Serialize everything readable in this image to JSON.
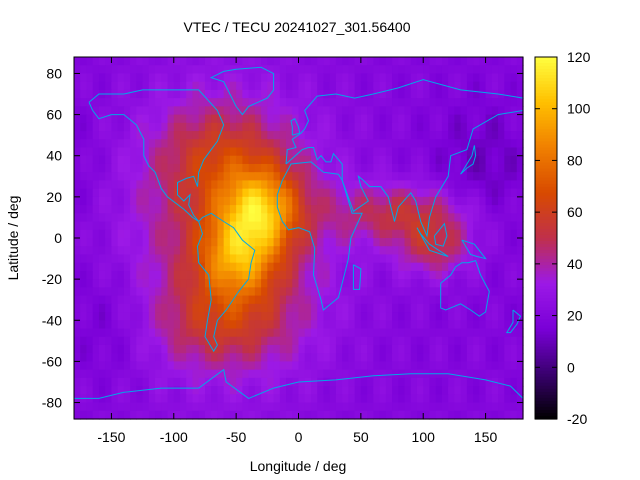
{
  "chart_data": {
    "type": "heatmap",
    "title": "VTEC / TECU 20241027_301.56400",
    "xlabel": "Longitude / deg",
    "ylabel": "Latitude / deg",
    "xlim": [
      -180,
      180
    ],
    "ylim": [
      -88,
      88
    ],
    "x_ticks": [
      -150,
      -100,
      -50,
      0,
      50,
      100,
      150
    ],
    "y_ticks": [
      -80,
      -60,
      -40,
      -20,
      0,
      20,
      40,
      60,
      80
    ],
    "colorbar": {
      "min": -20,
      "max": 120,
      "ticks": [
        -20,
        0,
        20,
        40,
        60,
        80,
        100,
        120
      ],
      "palette": [
        "#000000",
        "#3a0070",
        "#7a00d8",
        "#9c19e6",
        "#c0304a",
        "#d84a00",
        "#f08000",
        "#ffc000",
        "#ffff40"
      ]
    },
    "grid": false,
    "legend": "none",
    "background_vtec": 20,
    "features": [
      {
        "name": "equatorial-anomaly-peak-atlantic",
        "lon": -30,
        "lat": 12,
        "vtec": 112
      },
      {
        "name": "south-america-crest",
        "lon": -45,
        "lat": -12,
        "vtec": 100
      },
      {
        "name": "north-atlantic-lobe",
        "lon": -60,
        "lat": 40,
        "vtec": 60
      },
      {
        "name": "southern-lobe",
        "lon": -60,
        "lat": -42,
        "vtec": 55
      },
      {
        "name": "indian-ocean-band",
        "lon": 85,
        "lat": 15,
        "vtec": 55
      },
      {
        "name": "indonesia-band",
        "lon": 110,
        "lat": -5,
        "vtec": 50
      }
    ],
    "coastline_color": "#00a8e8"
  }
}
